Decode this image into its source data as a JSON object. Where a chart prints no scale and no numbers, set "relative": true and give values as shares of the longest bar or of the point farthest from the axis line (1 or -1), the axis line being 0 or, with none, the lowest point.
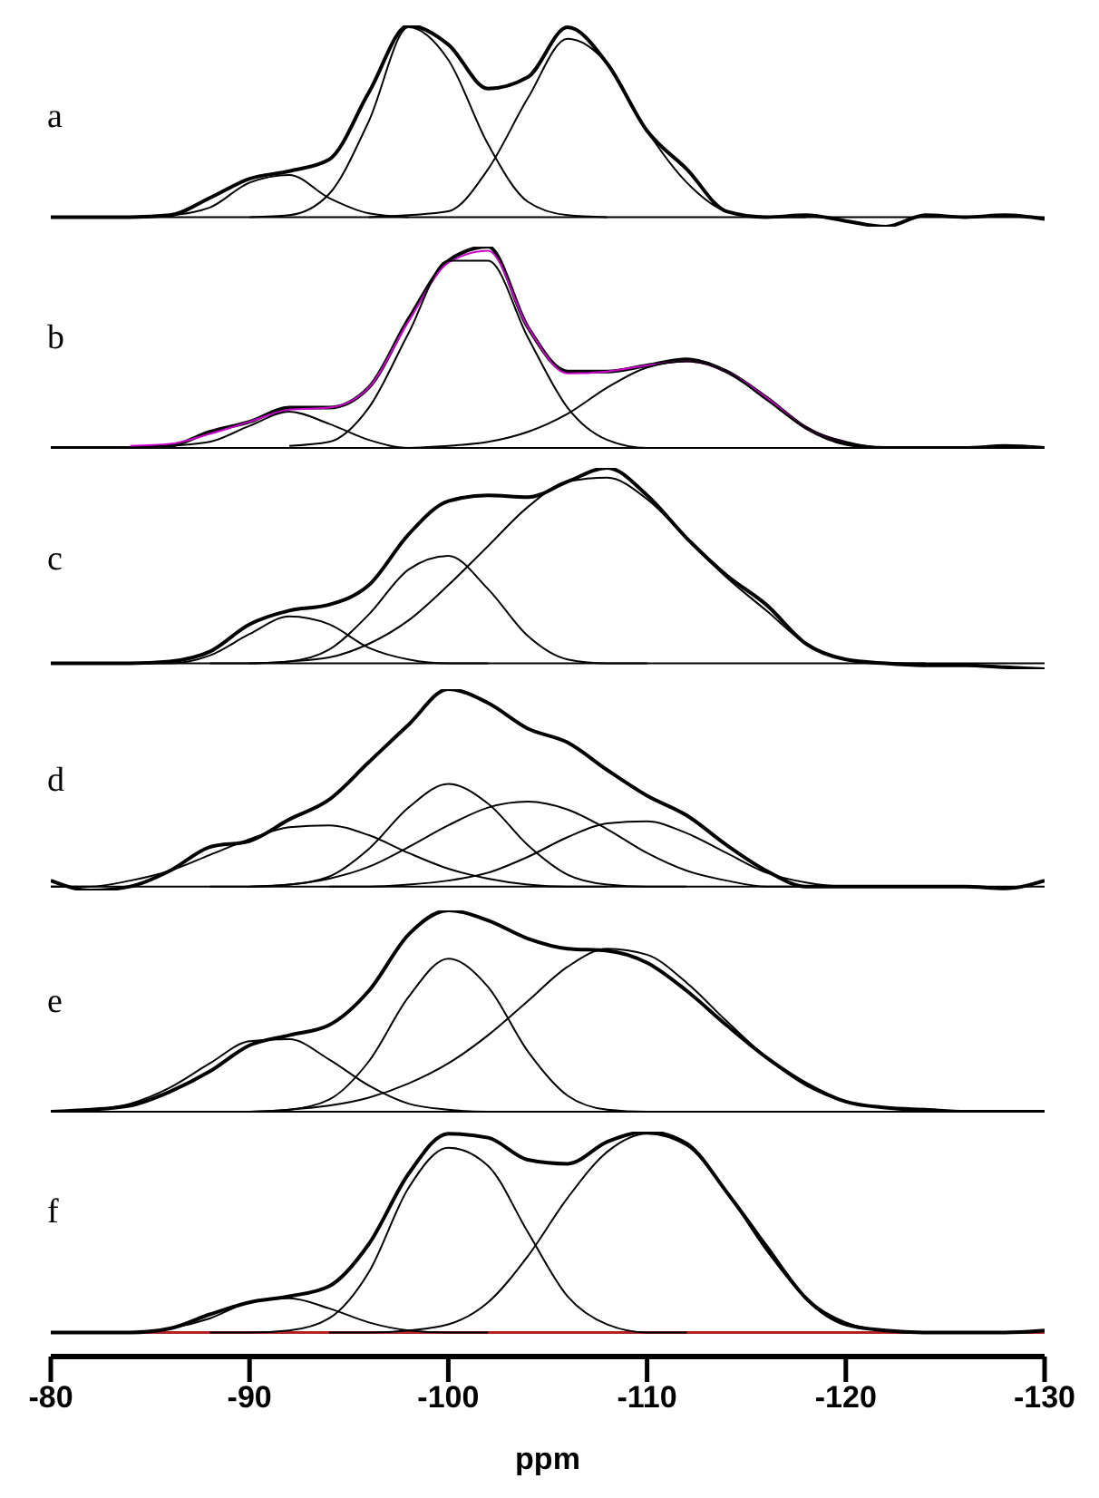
{
  "chart_data": [
    {
      "type": "line",
      "title": "a",
      "relative": true,
      "xlim": [
        -80,
        -130
      ],
      "xticks": [
        -80,
        -90,
        -100,
        -110,
        -120,
        -130
      ],
      "tick_labels": false,
      "x": [
        -80,
        -82,
        -84,
        -86,
        -88,
        -90,
        -92,
        -94,
        -96,
        -98,
        -100,
        -102,
        -104,
        -106,
        -108,
        -110,
        -112,
        -114,
        -116,
        -118,
        -120,
        -122,
        -124,
        -126,
        -128,
        -130
      ],
      "series": [
        {
          "color": "#000000",
          "values": [
            0,
            0,
            0,
            0.01,
            0.1,
            0.2,
            0.24,
            0.3,
            0.65,
            1,
            0.9,
            0.67,
            0.73,
            0.99,
            0.8,
            0.45,
            0.25,
            0.03,
            0,
            0.01,
            -0.02,
            -0.05,
            0.01,
            0,
            0.01,
            -0.01
          ]
        },
        {
          "color": "#000000",
          "x": [
            -84,
            -86,
            -88,
            -90,
            -92,
            -94,
            -96,
            -98
          ],
          "values": [
            0,
            0.01,
            0.05,
            0.18,
            0.22,
            0.1,
            0.02,
            0
          ]
        },
        {
          "color": "#000000",
          "x": [
            -90,
            -92,
            -94,
            -96,
            -98,
            -100,
            -102,
            -104,
            -106,
            -108
          ],
          "values": [
            0,
            0.01,
            0.12,
            0.5,
            0.99,
            0.82,
            0.38,
            0.08,
            0.01,
            0
          ]
        },
        {
          "color": "#000000",
          "x": [
            -96,
            -98,
            -100,
            -102,
            -104,
            -106,
            -108,
            -110,
            -112,
            -114,
            -116,
            -118
          ],
          "values": [
            0,
            0.01,
            0.03,
            0.25,
            0.62,
            0.93,
            0.8,
            0.45,
            0.18,
            0.03,
            0,
            0
          ]
        }
      ]
    },
    {
      "type": "line",
      "title": "b",
      "relative": true,
      "xlim": [
        -80,
        -130
      ],
      "xticks": [
        -80,
        -90,
        -100,
        -110,
        -120,
        -130
      ],
      "tick_labels": false,
      "x": [
        -80,
        -82,
        -84,
        -86,
        -88,
        -90,
        -92,
        -94,
        -96,
        -98,
        -100,
        -102,
        -104,
        -106,
        -108,
        -110,
        -112,
        -114,
        -116,
        -118,
        -120,
        -122,
        -124,
        -126,
        -128,
        -130
      ],
      "series": [
        {
          "color": "#000000",
          "values": [
            0,
            0,
            0,
            0.01,
            0.08,
            0.13,
            0.2,
            0.2,
            0.3,
            0.64,
            0.93,
            1,
            0.6,
            0.38,
            0.38,
            0.41,
            0.44,
            0.38,
            0.25,
            0.1,
            0.02,
            0,
            0,
            0,
            0.01,
            0
          ]
        },
        {
          "color": "#cc00cc",
          "values": [
            null,
            null,
            0.01,
            0.02,
            0.07,
            0.13,
            0.19,
            0.2,
            0.3,
            0.63,
            0.92,
            0.98,
            0.6,
            0.37,
            0.38,
            0.41,
            0.43,
            0.38,
            0.25,
            0.1,
            0.03,
            null,
            null,
            null,
            null,
            null
          ]
        },
        {
          "color": "#000000",
          "x": [
            -84,
            -86,
            -88,
            -90,
            -92,
            -94,
            -96,
            -98,
            -100
          ],
          "values": [
            0,
            0.01,
            0.03,
            0.11,
            0.18,
            0.12,
            0.04,
            0,
            0
          ]
        },
        {
          "color": "#000000",
          "x": [
            -92,
            -94,
            -96,
            -98,
            -100,
            -102,
            -104,
            -106,
            -108,
            -110,
            -112
          ],
          "values": [
            0.01,
            0.03,
            0.2,
            0.57,
            0.93,
            0.93,
            0.55,
            0.2,
            0.04,
            0,
            0
          ]
        },
        {
          "color": "#000000",
          "x": [
            -98,
            -100,
            -102,
            -104,
            -106,
            -108,
            -110,
            -112,
            -114,
            -116,
            -118,
            -120,
            -122,
            -124
          ],
          "values": [
            0,
            0.01,
            0.03,
            0.08,
            0.17,
            0.3,
            0.4,
            0.43,
            0.38,
            0.24,
            0.1,
            0.03,
            0,
            0
          ]
        }
      ]
    },
    {
      "type": "line",
      "title": "c",
      "relative": true,
      "xlim": [
        -80,
        -130
      ],
      "xticks": [
        -80,
        -90,
        -100,
        -110,
        -120,
        -130
      ],
      "tick_labels": false,
      "x": [
        -80,
        -82,
        -84,
        -86,
        -88,
        -90,
        -92,
        -94,
        -96,
        -98,
        -100,
        -102,
        -104,
        -106,
        -108,
        -110,
        -112,
        -114,
        -116,
        -118,
        -120,
        -122,
        -124,
        -126,
        -128,
        -130
      ],
      "series": [
        {
          "color": "#000000",
          "values": [
            0,
            0,
            0,
            0.01,
            0.06,
            0.2,
            0.27,
            0.3,
            0.4,
            0.66,
            0.83,
            0.86,
            0.85,
            0.93,
            1,
            0.86,
            0.64,
            0.45,
            0.3,
            0.1,
            0.02,
            0,
            -0.01,
            -0.01,
            -0.02,
            -0.03
          ]
        },
        {
          "color": "#000000",
          "x": [
            -84,
            -86,
            -88,
            -90,
            -92,
            -94,
            -96,
            -98,
            -100,
            -102
          ],
          "values": [
            0,
            0,
            0.04,
            0.15,
            0.24,
            0.2,
            0.08,
            0.02,
            0,
            0
          ]
        },
        {
          "color": "#000000",
          "x": [
            -90,
            -92,
            -94,
            -96,
            -98,
            -100,
            -102,
            -104,
            -106,
            -108,
            -110
          ],
          "values": [
            0,
            0.01,
            0.07,
            0.25,
            0.48,
            0.55,
            0.38,
            0.14,
            0.02,
            0,
            0
          ]
        },
        {
          "color": "#000000",
          "x": [
            -88,
            -90,
            -92,
            -94,
            -96,
            -98,
            -100,
            -102,
            -104,
            -106,
            -108,
            -110,
            -112,
            -114,
            -116,
            -118,
            -120,
            -122,
            -124
          ],
          "values": [
            0,
            0,
            0.01,
            0.03,
            0.1,
            0.22,
            0.4,
            0.6,
            0.8,
            0.93,
            0.95,
            0.84,
            0.64,
            0.44,
            0.27,
            0.1,
            0.02,
            0,
            0
          ]
        }
      ]
    },
    {
      "type": "line",
      "title": "d",
      "relative": true,
      "xlim": [
        -80,
        -130
      ],
      "xticks": [
        -80,
        -90,
        -100,
        -110,
        -120,
        -130
      ],
      "tick_labels": false,
      "x": [
        -80,
        -82,
        -84,
        -86,
        -88,
        -90,
        -92,
        -94,
        -96,
        -98,
        -100,
        -102,
        -104,
        -106,
        -108,
        -110,
        -112,
        -114,
        -116,
        -118,
        -120,
        -122,
        -124,
        -126,
        -128,
        -130
      ],
      "series": [
        {
          "color": "#000000",
          "values": [
            0.03,
            -0.02,
            0,
            0.08,
            0.2,
            0.23,
            0.34,
            0.44,
            0.63,
            0.82,
            1,
            0.93,
            0.8,
            0.73,
            0.59,
            0.46,
            0.36,
            0.21,
            0.08,
            0,
            0,
            0,
            0,
            0,
            -0.01,
            0.03
          ]
        },
        {
          "color": "#000000",
          "x": [
            -80,
            -82,
            -84,
            -86,
            -88,
            -90,
            -92,
            -94,
            -96,
            -98,
            -100,
            -102,
            -104,
            -106,
            -108
          ],
          "values": [
            0,
            0,
            0.03,
            0.08,
            0.16,
            0.24,
            0.3,
            0.31,
            0.26,
            0.17,
            0.09,
            0.04,
            0.01,
            0,
            0
          ]
        },
        {
          "color": "#000000",
          "x": [
            -90,
            -92,
            -94,
            -96,
            -98,
            -100,
            -102,
            -104,
            -106,
            -108,
            -110,
            -112
          ],
          "values": [
            0,
            0.01,
            0.05,
            0.19,
            0.4,
            0.52,
            0.42,
            0.21,
            0.06,
            0.01,
            0,
            0
          ]
        },
        {
          "color": "#000000",
          "x": [
            -88,
            -90,
            -92,
            -94,
            -96,
            -98,
            -100,
            -102,
            -104,
            -106,
            -108,
            -110,
            -112,
            -114,
            -116,
            -118
          ],
          "values": [
            0,
            0,
            0.01,
            0.04,
            0.1,
            0.2,
            0.31,
            0.4,
            0.43,
            0.39,
            0.29,
            0.17,
            0.08,
            0.03,
            0,
            0
          ]
        },
        {
          "color": "#000000",
          "x": [
            -94,
            -96,
            -98,
            -100,
            -102,
            -104,
            -106,
            -108,
            -110,
            -112,
            -114,
            -116,
            -118,
            -120,
            -122
          ],
          "values": [
            0,
            0,
            0.01,
            0.03,
            0.07,
            0.15,
            0.25,
            0.32,
            0.33,
            0.27,
            0.17,
            0.07,
            0.02,
            0,
            0
          ]
        }
      ]
    },
    {
      "type": "line",
      "title": "e",
      "relative": true,
      "xlim": [
        -80,
        -130
      ],
      "xticks": [
        -80,
        -90,
        -100,
        -110,
        -120,
        -130
      ],
      "tick_labels": false,
      "x": [
        -80,
        -82,
        -84,
        -86,
        -88,
        -90,
        -92,
        -94,
        -96,
        -98,
        -100,
        -102,
        -104,
        -106,
        -108,
        -110,
        -112,
        -114,
        -116,
        -118,
        -120,
        -122,
        -124,
        -126,
        -128,
        -130
      ],
      "series": [
        {
          "color": "#000000",
          "values": [
            0,
            0.01,
            0.03,
            0.1,
            0.2,
            0.33,
            0.38,
            0.43,
            0.6,
            0.88,
            1,
            0.95,
            0.86,
            0.81,
            0.8,
            0.74,
            0.6,
            0.43,
            0.27,
            0.14,
            0.05,
            0.02,
            0.01,
            0,
            0,
            0
          ]
        },
        {
          "color": "#000000",
          "x": [
            -80,
            -82,
            -84,
            -86,
            -88,
            -90,
            -92,
            -94,
            -96,
            -98,
            -100,
            -102,
            -104
          ],
          "values": [
            0,
            0.01,
            0.04,
            0.12,
            0.24,
            0.35,
            0.36,
            0.26,
            0.13,
            0.04,
            0.01,
            0,
            0
          ]
        },
        {
          "color": "#000000",
          "x": [
            -90,
            -92,
            -94,
            -96,
            -98,
            -100,
            -102,
            -104,
            -106,
            -108,
            -110,
            -112
          ],
          "values": [
            0,
            0.01,
            0.06,
            0.25,
            0.57,
            0.76,
            0.62,
            0.3,
            0.08,
            0.01,
            0,
            0
          ]
        },
        {
          "color": "#000000",
          "x": [
            -88,
            -90,
            -92,
            -94,
            -96,
            -98,
            -100,
            -102,
            -104,
            -106,
            -108,
            -110,
            -112,
            -114,
            -116,
            -118,
            -120,
            -122,
            -124,
            -126
          ],
          "values": [
            0,
            0,
            0.01,
            0.03,
            0.07,
            0.14,
            0.24,
            0.38,
            0.55,
            0.72,
            0.81,
            0.78,
            0.64,
            0.45,
            0.27,
            0.13,
            0.05,
            0.02,
            0,
            0
          ]
        }
      ]
    },
    {
      "type": "line",
      "title": "f",
      "xlabel": "ppm",
      "relative": true,
      "xlim": [
        -80,
        -130
      ],
      "xticks": [
        -80,
        -90,
        -100,
        -110,
        -120,
        -130
      ],
      "tick_labels": "x",
      "ref_lines": [
        {
          "axis": "y",
          "value": 0,
          "color": "#b22222"
        }
      ],
      "x": [
        -80,
        -82,
        -84,
        -86,
        -88,
        -90,
        -92,
        -94,
        -96,
        -98,
        -100,
        -102,
        -104,
        -106,
        -108,
        -110,
        -112,
        -114,
        -116,
        -118,
        -120,
        -122,
        -124,
        -126,
        -128,
        -130
      ],
      "series": [
        {
          "color": "#000000",
          "values": [
            0,
            0,
            0,
            0.02,
            0.09,
            0.15,
            0.18,
            0.23,
            0.44,
            0.79,
            0.99,
            0.97,
            0.86,
            0.84,
            0.95,
            1,
            0.94,
            0.7,
            0.43,
            0.17,
            0.04,
            0.01,
            0,
            0,
            0,
            0.01
          ]
        },
        {
          "color": "#000000",
          "x": [
            -82,
            -84,
            -86,
            -88,
            -90,
            -92,
            -94,
            -96,
            -98,
            -100,
            -102
          ],
          "values": [
            0,
            0,
            0.02,
            0.07,
            0.15,
            0.17,
            0.12,
            0.05,
            0.01,
            0,
            0
          ]
        },
        {
          "color": "#000000",
          "x": [
            -88,
            -90,
            -92,
            -94,
            -96,
            -98,
            -100,
            -102,
            -104,
            -106,
            -108,
            -110,
            -112
          ],
          "values": [
            0,
            0,
            0.01,
            0.07,
            0.3,
            0.72,
            0.92,
            0.83,
            0.5,
            0.18,
            0.04,
            0,
            0
          ]
        },
        {
          "color": "#000000",
          "x": [
            -94,
            -96,
            -98,
            -100,
            -102,
            -104,
            -106,
            -108,
            -110,
            -112,
            -114,
            -116,
            -118,
            -120,
            -122,
            -124,
            -126
          ],
          "values": [
            0,
            0,
            0.01,
            0.04,
            0.15,
            0.38,
            0.67,
            0.9,
            0.99,
            0.93,
            0.7,
            0.41,
            0.17,
            0.05,
            0.01,
            0,
            0
          ]
        }
      ]
    }
  ]
}
